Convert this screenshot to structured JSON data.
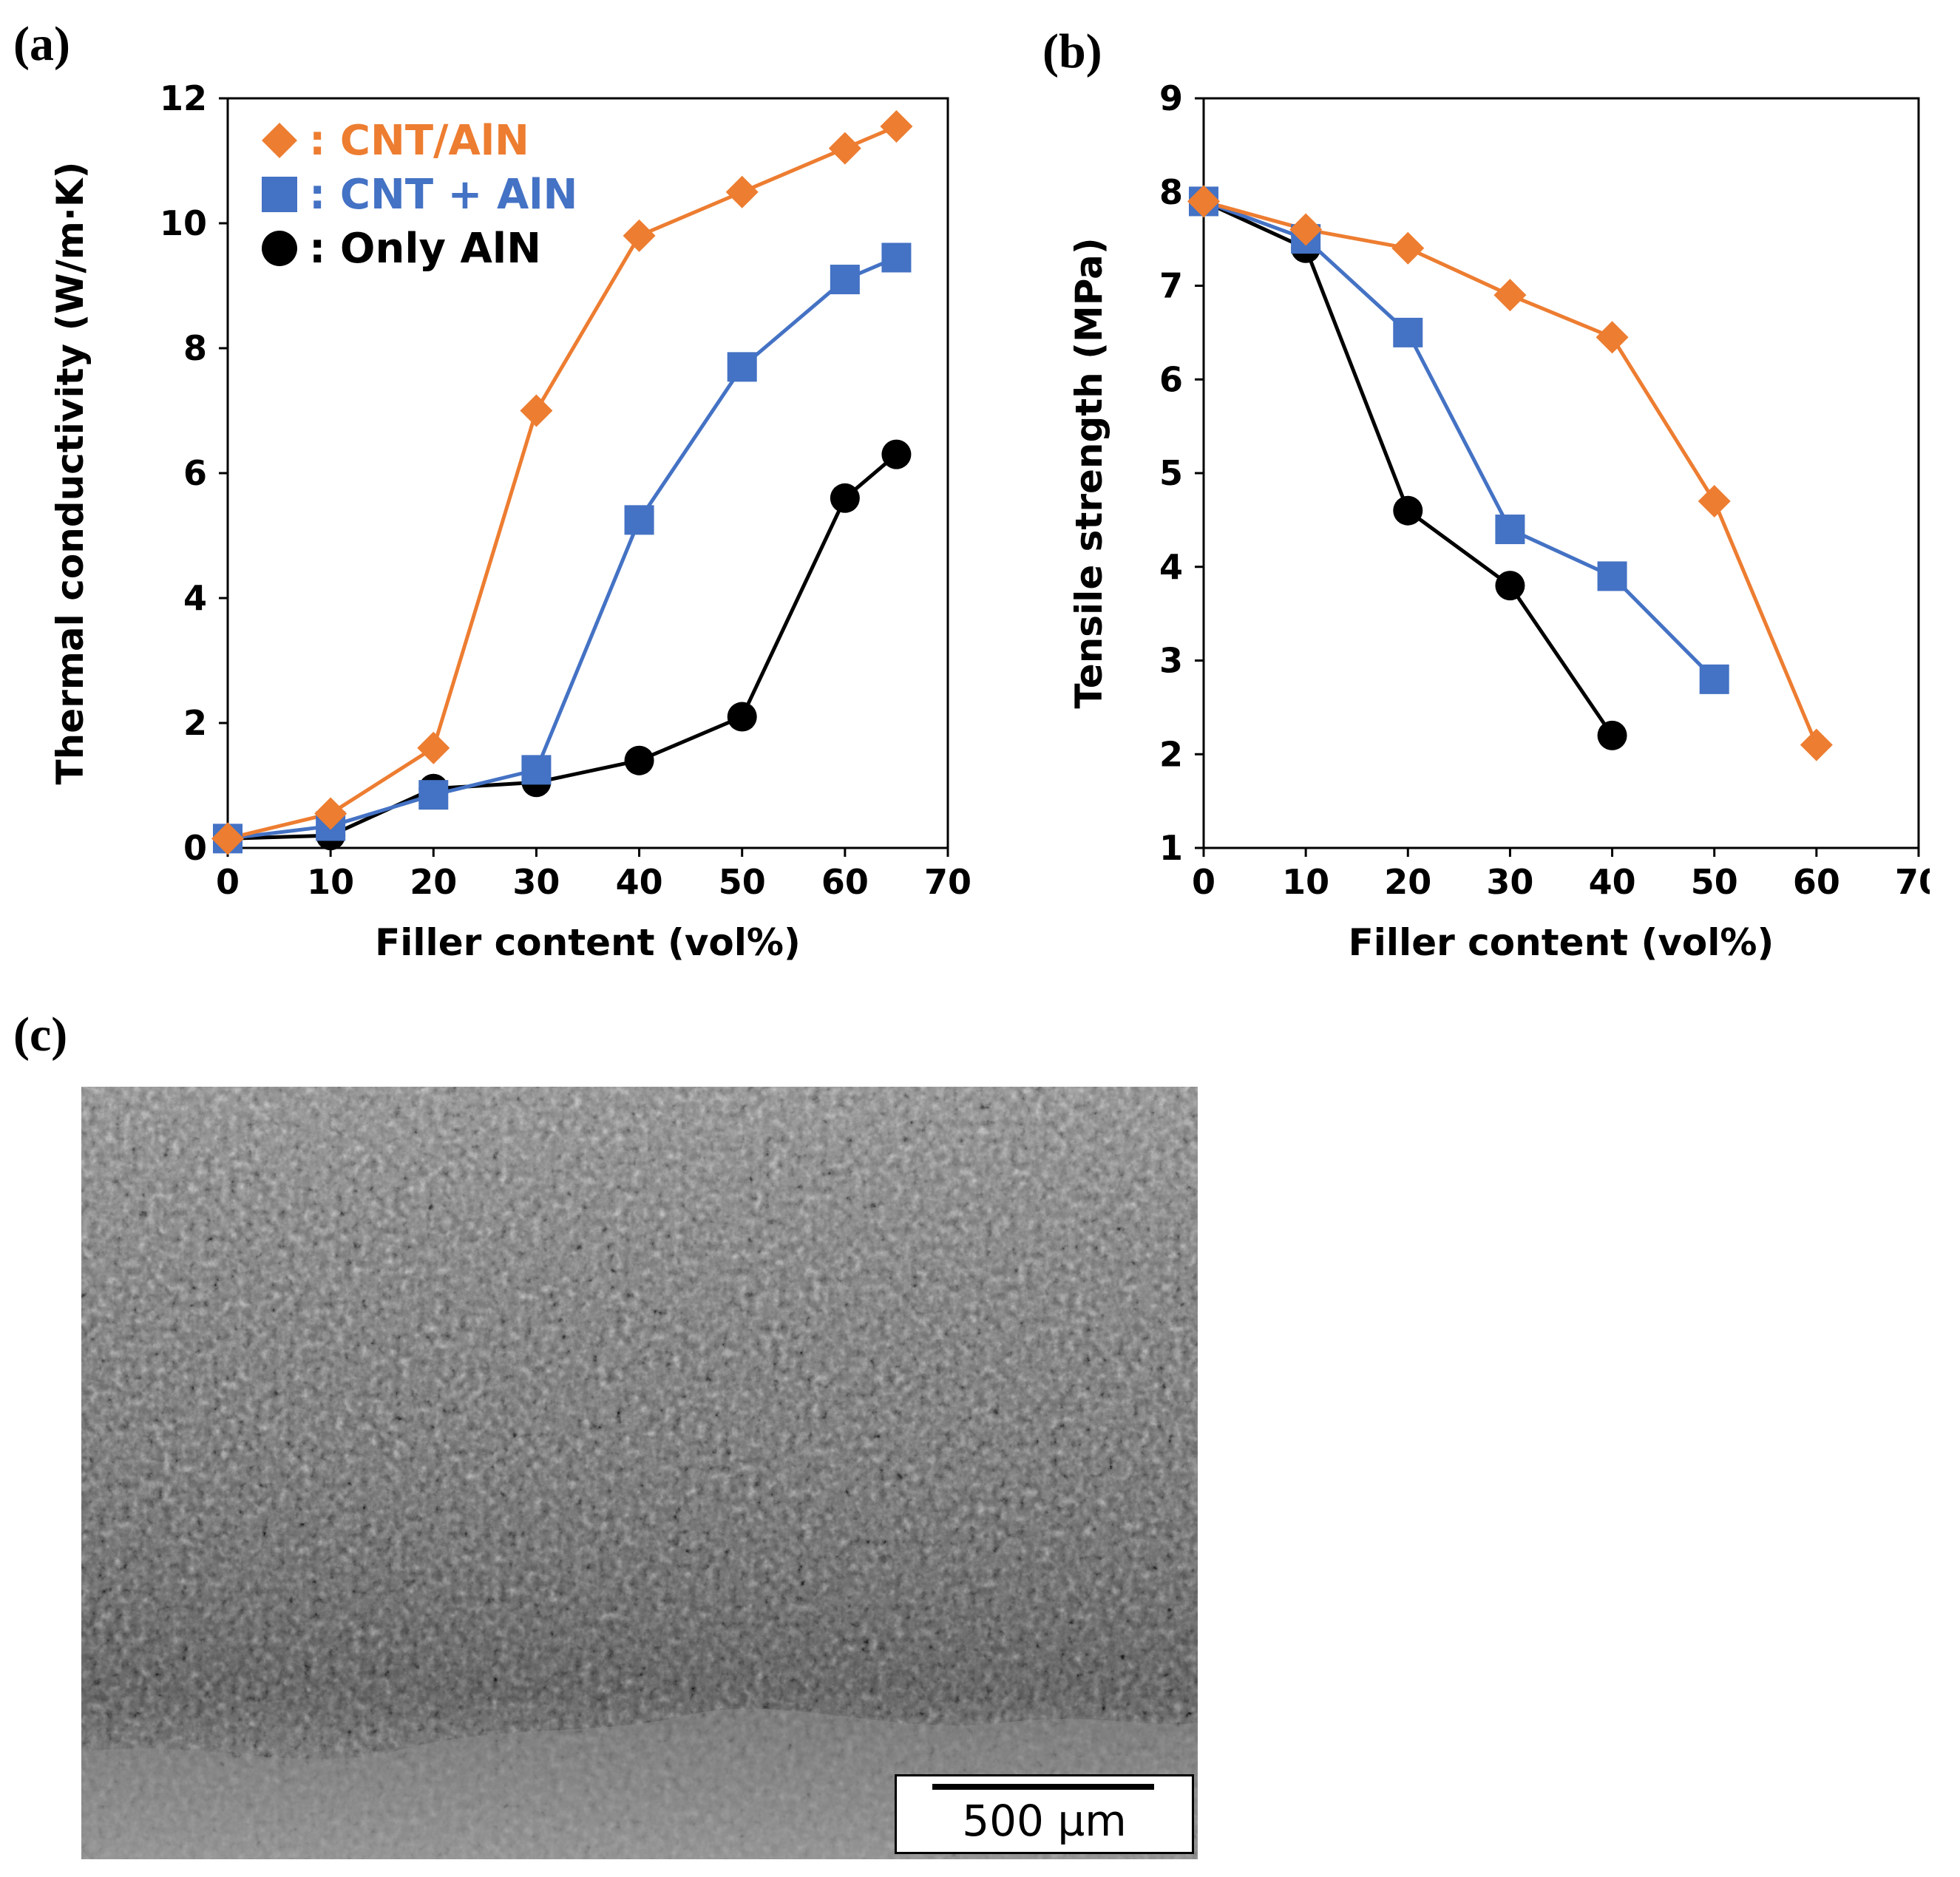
{
  "panel_labels": {
    "a": "(a)",
    "b": "(b)",
    "c": "(c)"
  },
  "colors": {
    "orange": "#ED7D31",
    "blue": "#4472C4",
    "black": "#000000"
  },
  "chart_data": [
    {
      "type": "line",
      "xlabel": "Filler content (vol%)",
      "ylabel": "Thermal conductivity (W/m·K)",
      "xlim": [
        0,
        70
      ],
      "ylim": [
        0,
        12
      ],
      "xticks": [
        0,
        10,
        20,
        30,
        40,
        50,
        60,
        70
      ],
      "yticks": [
        0,
        2,
        4,
        6,
        8,
        10,
        12
      ],
      "grid": false,
      "legend_position": "top-left",
      "series": [
        {
          "name": ": CNT/AlN",
          "marker": "diamond",
          "color": "#ED7D31",
          "x": [
            0,
            10,
            20,
            30,
            40,
            50,
            60,
            65
          ],
          "y": [
            0.15,
            0.55,
            1.6,
            7.0,
            9.8,
            10.5,
            11.2,
            11.55
          ]
        },
        {
          "name": ": CNT + AlN",
          "marker": "square",
          "color": "#4472C4",
          "x": [
            0,
            10,
            20,
            30,
            40,
            50,
            60,
            65
          ],
          "y": [
            0.15,
            0.35,
            0.85,
            1.25,
            5.25,
            7.7,
            9.1,
            9.45
          ]
        },
        {
          "name": ": Only AlN",
          "marker": "circle",
          "color": "#000000",
          "x": [
            0,
            10,
            20,
            30,
            40,
            50,
            60,
            65
          ],
          "y": [
            0.15,
            0.2,
            0.95,
            1.05,
            1.4,
            2.1,
            5.6,
            6.3
          ]
        }
      ]
    },
    {
      "type": "line",
      "xlabel": "Filler content (vol%)",
      "ylabel": "Tensile strength (MPa)",
      "xlim": [
        0,
        70
      ],
      "ylim": [
        1,
        9
      ],
      "xticks": [
        0,
        10,
        20,
        30,
        40,
        50,
        60,
        70
      ],
      "yticks": [
        1,
        2,
        3,
        4,
        5,
        6,
        7,
        8,
        9
      ],
      "grid": false,
      "series": [
        {
          "marker": "diamond",
          "color": "#ED7D31",
          "x": [
            0,
            10,
            20,
            30,
            40,
            50,
            60
          ],
          "y": [
            7.9,
            7.6,
            7.4,
            6.9,
            6.45,
            4.7,
            2.1
          ]
        },
        {
          "marker": "square",
          "color": "#4472C4",
          "x": [
            0,
            10,
            20,
            30,
            40,
            50
          ],
          "y": [
            7.9,
            7.5,
            6.5,
            4.4,
            3.9,
            2.8
          ]
        },
        {
          "marker": "circle",
          "color": "#000000",
          "x": [
            0,
            10,
            20,
            30,
            40
          ],
          "y": [
            7.9,
            7.4,
            4.6,
            3.8,
            2.2
          ]
        }
      ]
    }
  ],
  "micrograph": {
    "scale_bar_label": "500 µm"
  }
}
